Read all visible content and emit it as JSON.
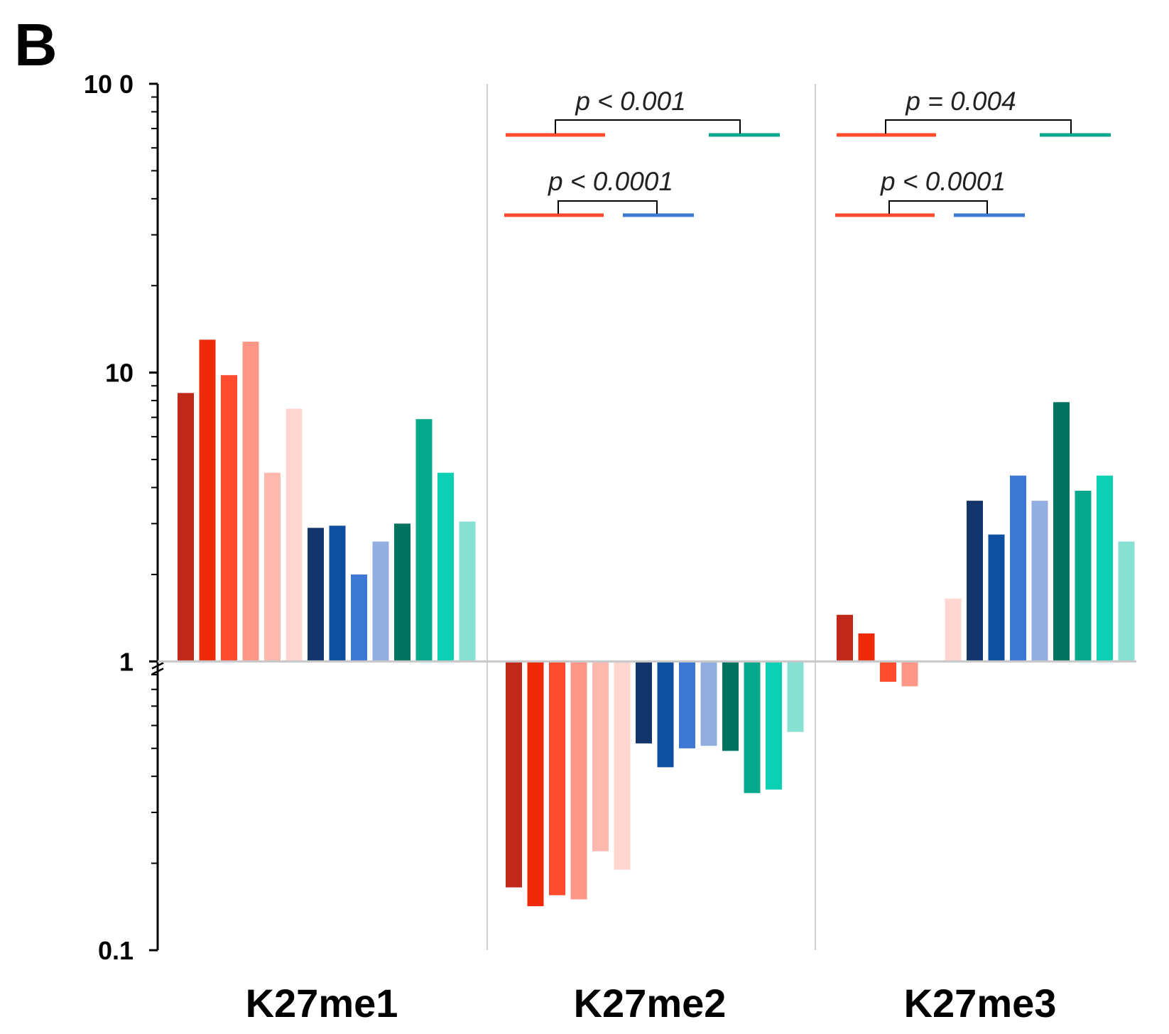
{
  "panel_label": "B",
  "chart_data": {
    "type": "bar",
    "scale": "log",
    "ylim": [
      0.1,
      100
    ],
    "baseline": 1,
    "yticks": [
      {
        "value": 0.1,
        "label": "0.1"
      },
      {
        "value": 1,
        "label": "1"
      },
      {
        "value": 10,
        "label": "10"
      },
      {
        "value": 100,
        "label": "10 0"
      }
    ],
    "groups": [
      {
        "label": "K27me1",
        "values": [
          8.5,
          13.0,
          9.8,
          12.8,
          4.5,
          7.5,
          2.9,
          2.95,
          2.0,
          2.6,
          3.0,
          6.9,
          4.5,
          3.05
        ]
      },
      {
        "label": "K27me2",
        "values": [
          0.165,
          0.142,
          0.155,
          0.15,
          0.22,
          0.19,
          0.52,
          0.43,
          0.5,
          0.51,
          0.49,
          0.35,
          0.36,
          0.57
        ]
      },
      {
        "label": "K27me3",
        "values": [
          1.45,
          1.25,
          0.85,
          0.82,
          1.0,
          1.65,
          3.6,
          2.75,
          4.4,
          3.6,
          7.9,
          3.9,
          4.4,
          2.6
        ]
      }
    ],
    "bar_colors": [
      "#c0281a",
      "#ee2a0a",
      "#ff4b2e",
      "#ff9686",
      "#ffb8ae",
      "#ffd6d0",
      "#14356b",
      "#0f4fa2",
      "#3c78d4",
      "#93aee0",
      "#00735e",
      "#06a88c",
      "#0bd0b3",
      "#86e1d2"
    ],
    "gridlines": "vertical separators between groups",
    "annotations": [
      {
        "group": 1,
        "text": "p < 0.001",
        "left_color": "#ff4b2e",
        "right_color": "#06a88c"
      },
      {
        "group": 1,
        "text": "p < 0.0001",
        "left_color": "#ff4b2e",
        "right_color": "#3c78d4"
      },
      {
        "group": 2,
        "text": "p = 0.004",
        "left_color": "#ff4b2e",
        "right_color": "#06a88c"
      },
      {
        "group": 2,
        "text": "p < 0.0001",
        "left_color": "#ff4b2e",
        "right_color": "#3c78d4"
      }
    ]
  }
}
